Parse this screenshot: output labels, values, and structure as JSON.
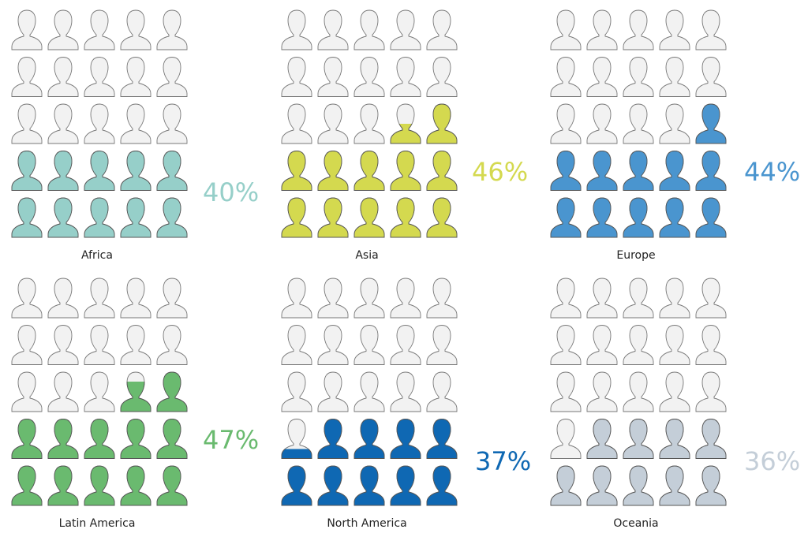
{
  "chart_data": {
    "type": "pictograph",
    "icons_per_panel": 25,
    "grid": "5x5",
    "empty_color": "#f2f2f2",
    "panels": [
      {
        "name": "Africa",
        "value": 40,
        "label": "40%",
        "color": "#96cfc9"
      },
      {
        "name": "Asia",
        "value": 46,
        "label": "46%",
        "color": "#d4d94f"
      },
      {
        "name": "Europe",
        "value": 44,
        "label": "44%",
        "color": "#4a95cf"
      },
      {
        "name": "Latin America",
        "value": 47,
        "label": "47%",
        "color": "#6aba6f"
      },
      {
        "name": "North America",
        "value": 37,
        "label": "37%",
        "color": "#0f68b3"
      },
      {
        "name": "Oceania",
        "value": 36,
        "label": "36%",
        "color": "#c4ced8"
      }
    ]
  }
}
